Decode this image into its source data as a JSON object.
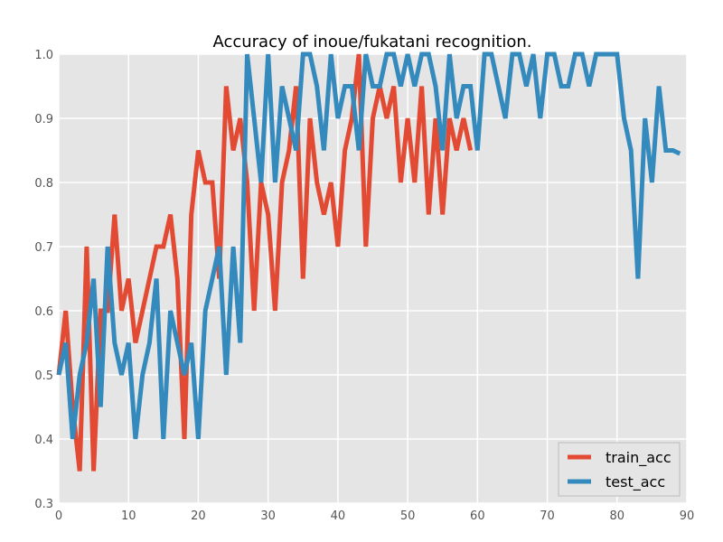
{
  "chart_data": {
    "type": "line",
    "title": "Accuracy of inoue/fukatani recognition.",
    "xlabel": "",
    "ylabel": "",
    "xlim": [
      0,
      90
    ],
    "ylim": [
      0.3,
      1.0
    ],
    "x_ticks": [
      "0",
      "10",
      "20",
      "30",
      "40",
      "50",
      "60",
      "70",
      "80",
      "90"
    ],
    "y_ticks": [
      "0.3",
      "0.4",
      "0.5",
      "0.6",
      "0.7",
      "0.8",
      "0.9",
      "1.0"
    ],
    "grid": true,
    "legend_position": "lower-right",
    "colors": {
      "background": "#e5e5e5",
      "grid": "#ffffff",
      "train_acc": "#e24a33",
      "test_acc": "#348abd"
    },
    "series": [
      {
        "name": "train_acc",
        "x": [
          0,
          1,
          2,
          3,
          4,
          5,
          6,
          7,
          8,
          9,
          10,
          11,
          12,
          13,
          14,
          15,
          16,
          17,
          18,
          19,
          20,
          21,
          22,
          23,
          24,
          25,
          26,
          27,
          28,
          29,
          30,
          31,
          32,
          33,
          34,
          35,
          36,
          37,
          38,
          39,
          40,
          41,
          42,
          43,
          44,
          45,
          46,
          47,
          48,
          49,
          50,
          51,
          52,
          53,
          54,
          55,
          56,
          57,
          58,
          59
        ],
        "values": [
          0.5,
          0.6,
          0.45,
          0.35,
          0.7,
          0.35,
          0.6,
          0.6,
          0.75,
          0.6,
          0.65,
          0.55,
          0.6,
          0.65,
          0.7,
          0.7,
          0.75,
          0.65,
          0.4,
          0.75,
          0.85,
          0.8,
          0.8,
          0.65,
          0.95,
          0.85,
          0.9,
          0.8,
          0.6,
          0.8,
          0.75,
          0.6,
          0.8,
          0.85,
          0.95,
          0.65,
          0.9,
          0.8,
          0.75,
          0.8,
          0.7,
          0.85,
          0.9,
          1.0,
          0.7,
          0.9,
          0.95,
          0.9,
          0.95,
          0.8,
          0.9,
          0.8,
          0.95,
          0.75,
          0.9,
          0.75,
          0.9,
          0.85,
          0.9,
          0.85
        ]
      },
      {
        "name": "test_acc",
        "x": [
          0,
          1,
          2,
          3,
          4,
          5,
          6,
          7,
          8,
          9,
          10,
          11,
          12,
          13,
          14,
          15,
          16,
          17,
          18,
          19,
          20,
          21,
          22,
          23,
          24,
          25,
          26,
          27,
          28,
          29,
          30,
          31,
          32,
          33,
          34,
          35,
          36,
          37,
          38,
          39,
          40,
          41,
          42,
          43,
          44,
          45,
          46,
          47,
          48,
          49,
          50,
          51,
          52,
          53,
          54,
          55,
          56,
          57,
          58,
          59,
          60,
          61,
          62,
          63,
          64,
          65,
          66,
          67,
          68,
          69,
          70,
          71,
          72,
          73,
          74,
          75,
          76,
          77,
          78,
          79,
          80,
          81,
          82,
          83,
          84,
          85,
          86,
          87,
          88,
          89
        ],
        "values": [
          0.5,
          0.55,
          0.4,
          0.5,
          0.55,
          0.65,
          0.45,
          0.7,
          0.55,
          0.5,
          0.55,
          0.4,
          0.5,
          0.55,
          0.65,
          0.4,
          0.6,
          0.55,
          0.5,
          0.55,
          0.4,
          0.6,
          0.65,
          0.7,
          0.5,
          0.7,
          0.55,
          1.0,
          0.9,
          0.8,
          1.0,
          0.8,
          0.95,
          0.9,
          0.85,
          1.0,
          1.0,
          0.95,
          0.85,
          1.0,
          0.9,
          0.95,
          0.95,
          0.85,
          1.0,
          0.95,
          0.95,
          1.0,
          1.0,
          0.95,
          1.0,
          0.95,
          1.0,
          1.0,
          0.95,
          0.85,
          1.0,
          0.9,
          0.95,
          0.95,
          0.85,
          1.0,
          1.0,
          0.95,
          0.9,
          1.0,
          1.0,
          0.95,
          1.0,
          0.9,
          1.0,
          1.0,
          0.95,
          0.95,
          1.0,
          1.0,
          0.95,
          1.0,
          1.0,
          1.0,
          1.0,
          0.9,
          0.85,
          0.65,
          0.9,
          0.8,
          0.95,
          0.85,
          0.85,
          0.845
        ]
      }
    ]
  }
}
